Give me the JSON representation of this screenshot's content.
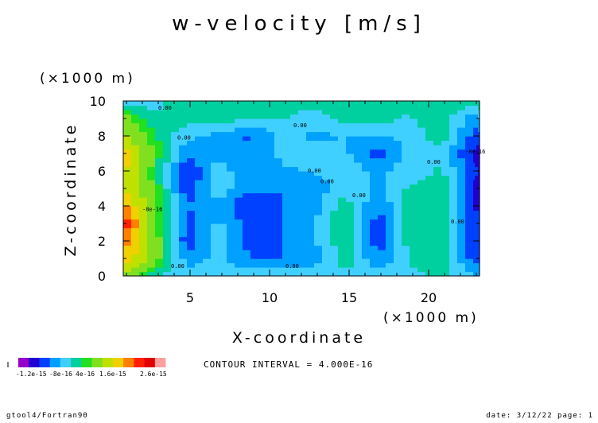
{
  "chart_data": {
    "type": "heatmap",
    "title": "w-velocity [m/s]",
    "xlabel": "X-coordinate",
    "ylabel": "Z-coordinate",
    "x_unit": "(×1000 m)",
    "y_unit": "(×1000 m)",
    "xlim": [
      0.8,
      23.2
    ],
    "ylim": [
      0,
      10
    ],
    "x_ticks": [
      5,
      10,
      15,
      20
    ],
    "y_ticks": [
      0,
      2,
      4,
      6,
      8,
      10
    ],
    "x_tick_labels": [
      "5",
      "10",
      "15",
      "20"
    ],
    "y_tick_labels": [
      "0",
      "2",
      "4",
      "6",
      "8",
      "10"
    ],
    "levels": [
      -1.2e-15,
      -8e-16,
      -4e-16,
      0,
      4e-16,
      8e-16,
      1.2e-15,
      1.6e-15,
      2e-15,
      2.4e-15,
      2.6e-15
    ],
    "colorbar_labels": [
      "-1.2e-15",
      "-8e-16",
      "4e-16",
      "1.6e-15",
      "2.6e-15"
    ],
    "colorbar_colors": [
      "#9600c8",
      "#2000d0",
      "#0040ff",
      "#00a0ff",
      "#40d0ff",
      "#00d0a0",
      "#20e020",
      "#80e020",
      "#c0e000",
      "#f0d000",
      "#ff8000",
      "#ff2000",
      "#e00000",
      "#ffa0a0"
    ],
    "contour_interval": "CONTOUR INTERVAL = 4.000E-16",
    "contour_labels": [
      {
        "text": "0.00",
        "x": 3.0,
        "y": 9.5
      },
      {
        "text": "0.00",
        "x": 3.8,
        "y": 0.45
      },
      {
        "text": "0.00",
        "x": 11.0,
        "y": 0.45
      },
      {
        "text": "0.00",
        "x": 11.5,
        "y": 8.5
      },
      {
        "text": "0.00",
        "x": 4.2,
        "y": 7.8
      },
      {
        "text": "0.00",
        "x": 12.4,
        "y": 5.9
      },
      {
        "text": "0.00",
        "x": 13.2,
        "y": 5.3
      },
      {
        "text": "0.00",
        "x": 15.2,
        "y": 4.5
      },
      {
        "text": "0.00",
        "x": 19.9,
        "y": 6.4
      },
      {
        "text": "0.00",
        "x": 21.4,
        "y": 3.0
      },
      {
        "text": "-8e-16",
        "x": 2.0,
        "y": 3.7
      },
      {
        "text": "-8e-16",
        "x": 22.3,
        "y": 7.0
      }
    ],
    "grid": {
      "x": [
        0.8,
        2.8,
        4.8,
        6.8,
        8.8,
        10.8,
        12.8,
        14.8,
        16.8,
        18.8,
        20.8,
        22.8,
        23.2
      ],
      "y": [
        0,
        1,
        2,
        3,
        4,
        5,
        6,
        7,
        8,
        9,
        10
      ],
      "values": [
        [
          1.6,
          0.0,
          -0.2,
          -0.2,
          -0.2,
          -0.2,
          -0.2,
          -0.2,
          -0.2,
          -0.2,
          0.1,
          -0.4,
          -0.4
        ],
        [
          3.8,
          1.3,
          -0.8,
          -0.3,
          -1.0,
          -1.0,
          -0.8,
          0.3,
          -1.0,
          0.1,
          0.3,
          -1.2,
          -1.3
        ],
        [
          4.5,
          1.4,
          -1.4,
          -0.2,
          -1.2,
          -1.0,
          -0.6,
          0.4,
          -1.3,
          0.2,
          0.4,
          -1.5,
          -1.5
        ],
        [
          6.0,
          1.2,
          -1.2,
          -0.4,
          -1.2,
          -1.0,
          -0.6,
          0.6,
          -1.3,
          0.2,
          0.4,
          -1.2,
          -1.3
        ],
        [
          4.2,
          1.2,
          -1.0,
          -0.6,
          -1.6,
          -1.0,
          -0.7,
          0.3,
          -1.0,
          0.2,
          0.5,
          -1.6,
          -1.6
        ],
        [
          2.8,
          0.8,
          -1.4,
          -0.2,
          -0.9,
          -1.0,
          -0.8,
          -0.2,
          -0.6,
          0.1,
          0.4,
          -1.6,
          -1.7
        ],
        [
          3.2,
          0.6,
          -1.6,
          -0.2,
          -1.0,
          -0.6,
          -0.5,
          -0.2,
          -0.6,
          -0.3,
          0.1,
          -1.4,
          -1.5
        ],
        [
          3.6,
          0.8,
          -0.9,
          -0.6,
          -0.9,
          -0.4,
          0.0,
          -0.4,
          -1.3,
          -0.2,
          -0.2,
          -1.6,
          -1.8
        ],
        [
          2.0,
          0.6,
          -0.4,
          -0.7,
          -1.1,
          -0.4,
          -0.6,
          -0.5,
          -0.6,
          -0.4,
          0.4,
          -1.2,
          -1.2
        ],
        [
          1.4,
          0.1,
          0.2,
          0.3,
          0.0,
          0.0,
          -0.3,
          0.3,
          0.2,
          -0.1,
          0.4,
          -0.8,
          -0.6
        ],
        [
          -0.2,
          -0.2,
          0.3,
          0.3,
          0.3,
          0.3,
          0.3,
          0.3,
          0.3,
          0.3,
          0.3,
          0.4,
          0.4
        ]
      ]
    }
  },
  "footer": {
    "left": "gtool4/Fortran90",
    "right": "date: 3/12/22 page: 1"
  }
}
